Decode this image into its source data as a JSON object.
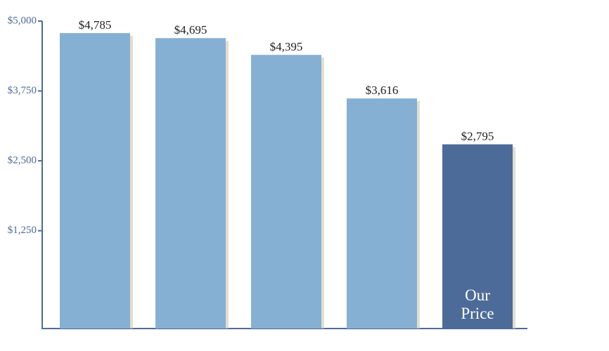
{
  "chart_data": {
    "type": "bar",
    "categories": [
      null,
      null,
      null,
      null,
      "Our Price"
    ],
    "values": [
      4785,
      4695,
      4395,
      3616,
      2795
    ],
    "value_labels": [
      "$4,785",
      "$4,695",
      "$4,395",
      "$3,616",
      "$2,795"
    ],
    "colors": [
      "#85b0d3",
      "#85b0d3",
      "#85b0d3",
      "#85b0d3",
      "#4d6b98"
    ],
    "ylim": [
      -500,
      5000
    ],
    "yticks": [
      {
        "value": 1250,
        "label": "$1,250"
      },
      {
        "value": 2500,
        "label": "$2,500"
      },
      {
        "value": 3750,
        "label": "$3,750"
      },
      {
        "value": 5000,
        "label": "$5,000"
      }
    ],
    "grid": false
  }
}
